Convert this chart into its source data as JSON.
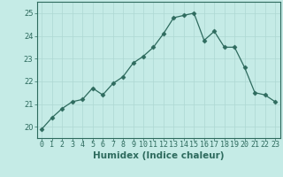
{
  "x": [
    0,
    1,
    2,
    3,
    4,
    5,
    6,
    7,
    8,
    9,
    10,
    11,
    12,
    13,
    14,
    15,
    16,
    17,
    18,
    19,
    20,
    21,
    22,
    23
  ],
  "y": [
    19.9,
    20.4,
    20.8,
    21.1,
    21.2,
    21.7,
    21.4,
    21.9,
    22.2,
    22.8,
    23.1,
    23.5,
    24.1,
    24.8,
    24.9,
    25.0,
    23.8,
    24.2,
    23.5,
    23.5,
    22.6,
    21.5,
    21.4,
    21.1
  ],
  "line_color": "#2e6b5e",
  "marker": "D",
  "marker_size": 2.5,
  "bg_color": "#c5ebe6",
  "grid_color": "#aed8d2",
  "xlabel": "Humidex (Indice chaleur)",
  "ylim": [
    19.5,
    25.5
  ],
  "xlim": [
    -0.5,
    23.5
  ],
  "yticks": [
    20,
    21,
    22,
    23,
    24,
    25
  ],
  "tick_color": "#2e6b5e",
  "spine_color": "#2e6b5e",
  "label_fontsize": 7.5,
  "tick_fontsize": 6.0
}
